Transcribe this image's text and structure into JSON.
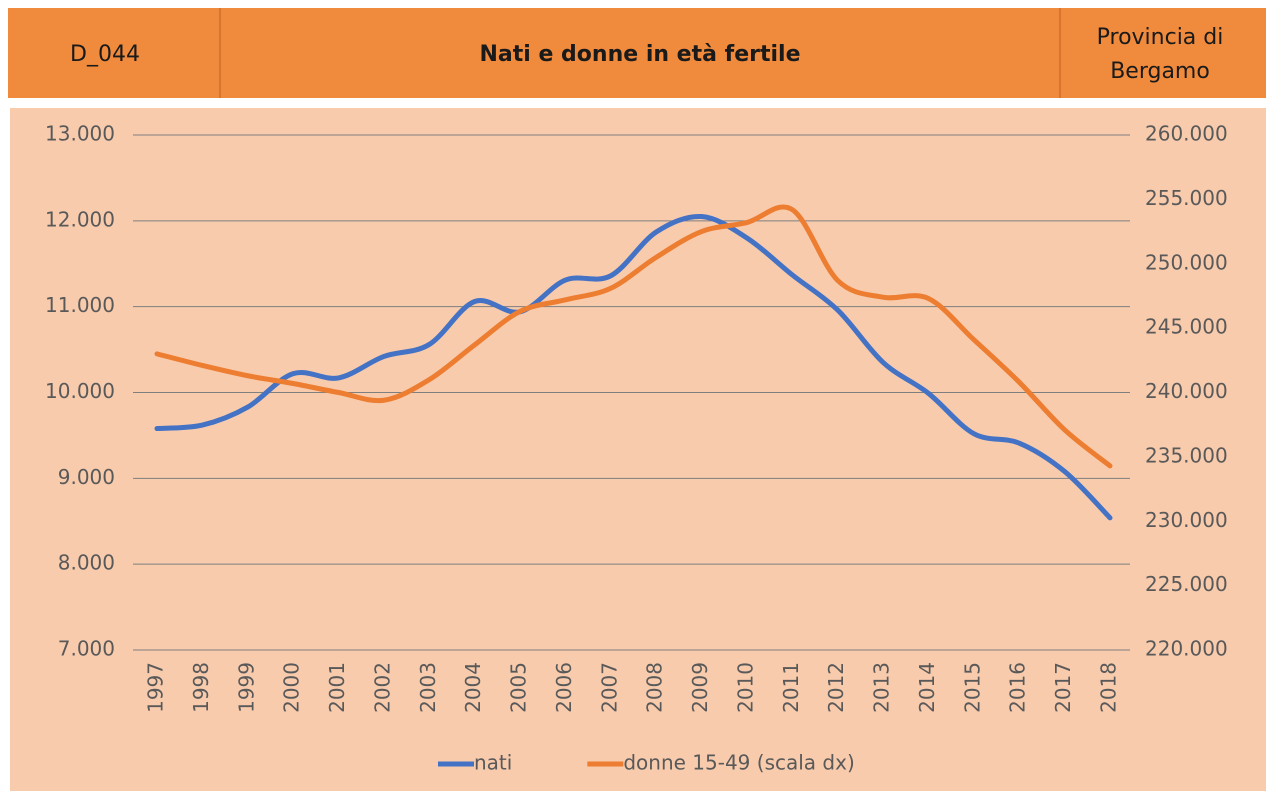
{
  "header": {
    "code": "D_044",
    "title": "Nati e donne in età fertile",
    "region_line1": "Provincia di",
    "region_line2": "Bergamo"
  },
  "chart_data": {
    "type": "line",
    "categories": [
      "1997",
      "1998",
      "1999",
      "2000",
      "2001",
      "2002",
      "2003",
      "2004",
      "2005",
      "2006",
      "2007",
      "2008",
      "2009",
      "2010",
      "2011",
      "2012",
      "2013",
      "2014",
      "2015",
      "2016",
      "2017",
      "2018"
    ],
    "series": [
      {
        "name": "nati",
        "color": "#4472c4",
        "values": [
          9580,
          9620,
          9830,
          10220,
          10170,
          10420,
          10560,
          11060,
          10940,
          11310,
          11360,
          11870,
          12050,
          11800,
          11370,
          10960,
          10350,
          9990,
          9520,
          9410,
          9080,
          8540
        ]
      },
      {
        "name": "donne 15-49 (scala dx)",
        "color": "#ed7d31",
        "axis": "y2",
        "values": [
          243000,
          242100,
          241300,
          240700,
          240000,
          239400,
          241000,
          243700,
          246300,
          247200,
          248100,
          250500,
          252500,
          253200,
          254200,
          248700,
          247400,
          247300,
          244100,
          240800,
          237100,
          234300
        ]
      }
    ],
    "ylim": [
      7000,
      13000
    ],
    "yticks": [
      {
        "value": 7000,
        "label": "7.000"
      },
      {
        "value": 8000,
        "label": "8.000"
      },
      {
        "value": 9000,
        "label": "9.000"
      },
      {
        "value": 10000,
        "label": "10.000"
      },
      {
        "value": 11000,
        "label": "11.000"
      },
      {
        "value": 12000,
        "label": "12.000"
      },
      {
        "value": 13000,
        "label": "13.000"
      }
    ],
    "y2lim": [
      220000,
      260000
    ],
    "y2ticks": [
      {
        "value": 220000,
        "label": "220.000"
      },
      {
        "value": 225000,
        "label": "225.000"
      },
      {
        "value": 230000,
        "label": "230.000"
      },
      {
        "value": 235000,
        "label": "235.000"
      },
      {
        "value": 240000,
        "label": "240.000"
      },
      {
        "value": 245000,
        "label": "245.000"
      },
      {
        "value": 250000,
        "label": "250.000"
      },
      {
        "value": 255000,
        "label": "255.000"
      },
      {
        "value": 260000,
        "label": "260.000"
      }
    ],
    "grid": true,
    "legend": "bottom"
  }
}
